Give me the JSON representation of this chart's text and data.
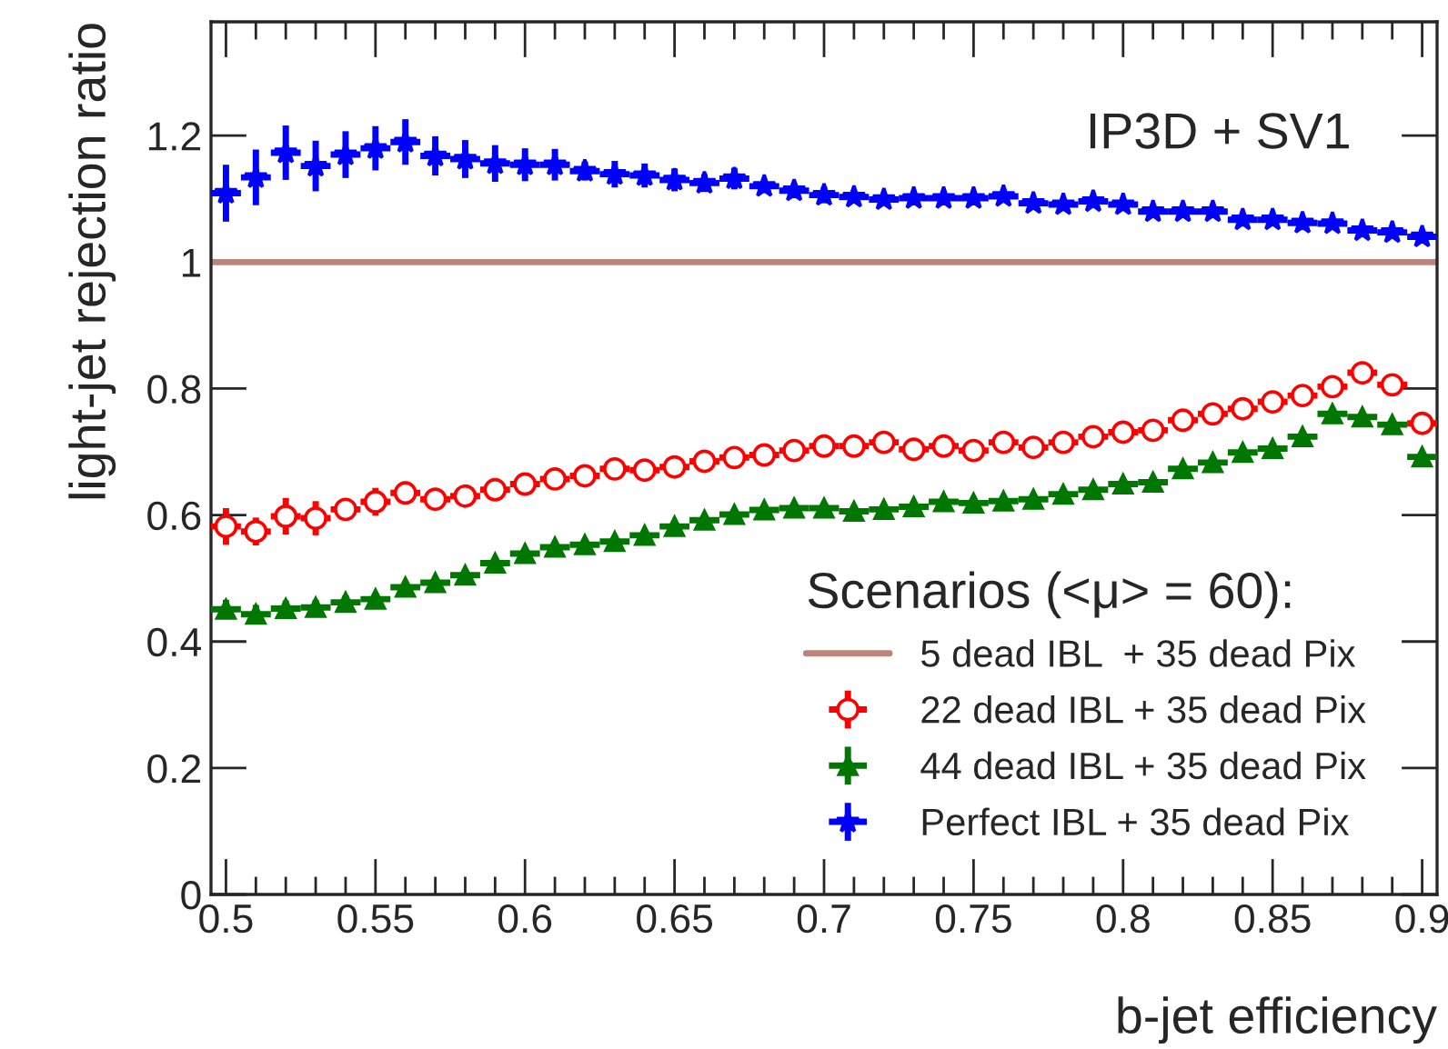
{
  "chart_data": {
    "type": "scatter",
    "xlabel": "b-jet efficiency",
    "ylabel": "light-jet rejection ratio",
    "legend_title": "Scenarios (<μ> = 60):",
    "legend": "bottom right",
    "annotations": [
      "IP3D + SV1"
    ],
    "xlim": [
      0.495,
      0.905
    ],
    "ylim": [
      0,
      1.38
    ],
    "xticks": [
      0.5,
      0.55,
      0.6,
      0.65,
      0.7,
      0.75,
      0.8,
      0.85,
      0.9
    ],
    "yticks": [
      0,
      0.2,
      0.4,
      0.6,
      0.8,
      1,
      1.2
    ],
    "grid": false,
    "x": [
      0.5,
      0.51,
      0.52,
      0.53,
      0.54,
      0.55,
      0.56,
      0.57,
      0.58,
      0.59,
      0.6,
      0.61,
      0.62,
      0.63,
      0.64,
      0.65,
      0.66,
      0.67,
      0.68,
      0.69,
      0.7,
      0.71,
      0.72,
      0.73,
      0.74,
      0.75,
      0.76,
      0.77,
      0.78,
      0.79,
      0.8,
      0.81,
      0.82,
      0.83,
      0.84,
      0.85,
      0.86,
      0.87,
      0.88,
      0.89,
      0.9
    ],
    "series": [
      {
        "name": "5 dead IBL  + 35 dead Pix",
        "type": "line",
        "color": "#c08378",
        "line_style": "solid",
        "marker": "none",
        "x": [
          0.495,
          0.905
        ],
        "values": [
          1,
          1
        ]
      },
      {
        "name": "22 dead IBL + 35 dead Pix",
        "color": "#ff0000",
        "marker": "circle",
        "values": [
          0.582,
          0.574,
          0.598,
          0.595,
          0.609,
          0.621,
          0.635,
          0.625,
          0.63,
          0.64,
          0.649,
          0.657,
          0.662,
          0.673,
          0.671,
          0.676,
          0.685,
          0.691,
          0.695,
          0.702,
          0.709,
          0.709,
          0.715,
          0.704,
          0.709,
          0.702,
          0.715,
          0.707,
          0.715,
          0.724,
          0.731,
          0.734,
          0.75,
          0.76,
          0.768,
          0.779,
          0.789,
          0.803,
          0.825,
          0.806,
          0.745
        ],
        "errors": [
          0.029,
          0.022,
          0.029,
          0.027,
          0.017,
          0.022,
          0.018,
          0.015,
          0.015,
          0.013,
          0.012,
          0.011,
          0.01,
          0.009,
          0.008,
          0.008,
          0.007,
          0.007,
          0.006,
          0.006,
          0.006,
          0.005,
          0.005,
          0.005,
          0.005,
          0.005,
          0.005,
          0.005,
          0.005,
          0.005,
          0.005,
          0.005,
          0.005,
          0.005,
          0.005,
          0.005,
          0.005,
          0.005,
          0.005,
          0.005,
          0.005
        ],
        "xerrors": [
          0.005,
          0.005,
          0.005,
          0.005,
          0.005,
          0.005,
          0.005,
          0.005,
          0.005,
          0.005,
          0.005,
          0.005,
          0.005,
          0.005,
          0.005,
          0.005,
          0.005,
          0.005,
          0.005,
          0.005,
          0.005,
          0.005,
          0.005,
          0.005,
          0.005,
          0.005,
          0.005,
          0.005,
          0.005,
          0.005,
          0.005,
          0.005,
          0.005,
          0.005,
          0.005,
          0.005,
          0.005,
          0.005,
          0.005,
          0.005,
          0.005
        ]
      },
      {
        "name": "44 dead IBL + 35 dead Pix",
        "color": "#007700",
        "marker": "triangle",
        "values": [
          0.451,
          0.443,
          0.452,
          0.454,
          0.462,
          0.467,
          0.486,
          0.493,
          0.505,
          0.524,
          0.539,
          0.549,
          0.553,
          0.558,
          0.568,
          0.582,
          0.592,
          0.601,
          0.608,
          0.611,
          0.611,
          0.606,
          0.609,
          0.613,
          0.621,
          0.619,
          0.622,
          0.625,
          0.633,
          0.64,
          0.649,
          0.652,
          0.673,
          0.683,
          0.699,
          0.705,
          0.724,
          0.76,
          0.755,
          0.743,
          0.692
        ],
        "errors": [
          0.015,
          0.015,
          0.013,
          0.012,
          0.011,
          0.01,
          0.01,
          0.009,
          0.008,
          0.008,
          0.007,
          0.007,
          0.006,
          0.006,
          0.005,
          0.005,
          0.005,
          0.005,
          0.004,
          0.004,
          0.004,
          0.004,
          0.004,
          0.004,
          0.004,
          0.004,
          0.004,
          0.004,
          0.004,
          0.004,
          0.004,
          0.004,
          0.004,
          0.004,
          0.004,
          0.004,
          0.004,
          0.004,
          0.004,
          0.004,
          0.004
        ],
        "xerrors": [
          0.005,
          0.005,
          0.005,
          0.005,
          0.005,
          0.005,
          0.005,
          0.005,
          0.005,
          0.005,
          0.005,
          0.005,
          0.005,
          0.005,
          0.005,
          0.005,
          0.005,
          0.005,
          0.005,
          0.005,
          0.005,
          0.005,
          0.005,
          0.005,
          0.005,
          0.005,
          0.005,
          0.005,
          0.005,
          0.005,
          0.005,
          0.005,
          0.005,
          0.005,
          0.005,
          0.005,
          0.005,
          0.005,
          0.005,
          0.005,
          0.005
        ]
      },
      {
        "name": "Perfect IBL + 35 dead Pix",
        "color": "#0000ff",
        "marker": "star",
        "values": [
          1.109,
          1.134,
          1.173,
          1.152,
          1.17,
          1.18,
          1.19,
          1.168,
          1.163,
          1.156,
          1.154,
          1.154,
          1.144,
          1.139,
          1.137,
          1.13,
          1.125,
          1.132,
          1.12,
          1.113,
          1.106,
          1.103,
          1.099,
          1.101,
          1.101,
          1.101,
          1.104,
          1.093,
          1.091,
          1.096,
          1.091,
          1.08,
          1.08,
          1.08,
          1.067,
          1.067,
          1.062,
          1.061,
          1.05,
          1.047,
          1.04
        ],
        "errors": [
          0.045,
          0.044,
          0.043,
          0.04,
          0.037,
          0.035,
          0.036,
          0.031,
          0.03,
          0.029,
          0.026,
          0.025,
          0.015,
          0.021,
          0.019,
          0.018,
          0.014,
          0.017,
          0.011,
          0.012,
          0.013,
          0.01,
          0.008,
          0.006,
          0.006,
          0.005,
          0.005,
          0.004,
          0.004,
          0.004,
          0.004,
          0.004,
          0.004,
          0.004,
          0.004,
          0.004,
          0.004,
          0.004,
          0.004,
          0.004,
          0.004
        ],
        "xerrors": [
          0.005,
          0.005,
          0.005,
          0.005,
          0.005,
          0.005,
          0.005,
          0.005,
          0.005,
          0.005,
          0.005,
          0.005,
          0.005,
          0.005,
          0.005,
          0.005,
          0.005,
          0.005,
          0.005,
          0.005,
          0.005,
          0.005,
          0.005,
          0.005,
          0.005,
          0.005,
          0.005,
          0.005,
          0.005,
          0.005,
          0.005,
          0.005,
          0.005,
          0.005,
          0.005,
          0.005,
          0.005,
          0.005,
          0.005,
          0.005,
          0.005
        ]
      }
    ]
  }
}
